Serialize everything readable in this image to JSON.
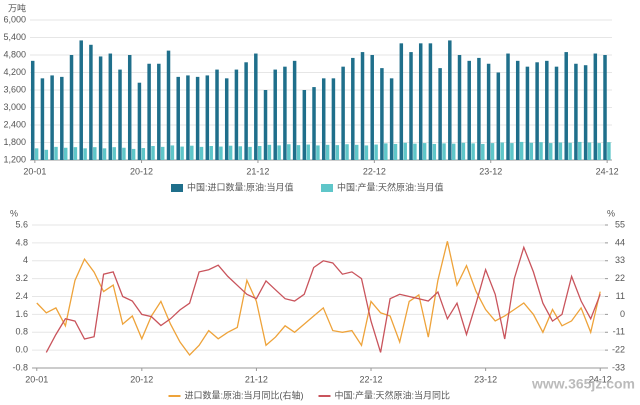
{
  "chart_data": [
    {
      "type": "bar",
      "unit": "万吨",
      "categories": [
        "20-01",
        null,
        null,
        null,
        null,
        null,
        null,
        null,
        null,
        null,
        null,
        "20-12",
        null,
        null,
        null,
        null,
        null,
        null,
        null,
        null,
        null,
        null,
        null,
        "21-12",
        null,
        null,
        null,
        null,
        null,
        null,
        null,
        null,
        null,
        null,
        null,
        "22-12",
        null,
        null,
        null,
        null,
        null,
        null,
        null,
        null,
        null,
        null,
        null,
        "23-12",
        null,
        null,
        null,
        null,
        null,
        null,
        null,
        null,
        null,
        null,
        null,
        "24-12"
      ],
      "series": [
        {
          "name": "中国:进口数量:原油:当月值",
          "color": "#1f6f8b",
          "values": [
            4600,
            4000,
            4100,
            4050,
            4800,
            5300,
            5150,
            4750,
            4850,
            4300,
            4800,
            3850,
            4500,
            4500,
            4950,
            4050,
            4100,
            4050,
            4100,
            4300,
            4000,
            4300,
            4550,
            4850,
            3600,
            4300,
            4400,
            4600,
            3600,
            3700,
            4000,
            4000,
            4400,
            4700,
            4900,
            4800,
            4350,
            4000,
            5200,
            4900,
            5200,
            5200,
            4350,
            5300,
            4800,
            4600,
            4700,
            4500,
            4200,
            4850,
            4600,
            4400,
            4550,
            4600,
            4400,
            4900,
            4500,
            4450,
            4850,
            4800
          ]
        },
        {
          "name": "中国:产量:天然原油:当月值",
          "color": "#5fc6c9",
          "values": [
            1600,
            1550,
            1650,
            1620,
            1640,
            1600,
            1640,
            1600,
            1640,
            1620,
            1580,
            1610,
            1680,
            1650,
            1700,
            1660,
            1690,
            1650,
            1680,
            1660,
            1690,
            1670,
            1650,
            1680,
            1720,
            1700,
            1740,
            1710,
            1730,
            1700,
            1720,
            1710,
            1740,
            1720,
            1700,
            1730,
            1770,
            1750,
            1790,
            1760,
            1780,
            1750,
            1770,
            1760,
            1790,
            1770,
            1750,
            1780,
            1800,
            1780,
            1820,
            1790,
            1810,
            1780,
            1800,
            1790,
            1820,
            1800,
            1780,
            1810
          ]
        }
      ],
      "ylim": [
        1200,
        6000
      ],
      "yticks": [
        {
          "value": 1200,
          "label": "1,200"
        },
        {
          "value": 1800,
          "label": "1,800"
        },
        {
          "value": 2400,
          "label": "2,400"
        },
        {
          "value": 3000,
          "label": "3,000"
        },
        {
          "value": 3600,
          "label": "3,600"
        },
        {
          "value": 4200,
          "label": "4,200"
        },
        {
          "value": 4800,
          "label": "4,800"
        },
        {
          "value": 5400,
          "label": "5,400"
        },
        {
          "value": 6000,
          "label": "6,000"
        }
      ],
      "grid": true
    },
    {
      "type": "line",
      "unit": "%",
      "y2_unit": "%",
      "watermark": "www.365jz.com",
      "categories": [
        "20-01",
        null,
        null,
        null,
        null,
        null,
        null,
        null,
        null,
        null,
        null,
        "20-12",
        null,
        null,
        null,
        null,
        null,
        null,
        null,
        null,
        null,
        null,
        null,
        "21-12",
        null,
        null,
        null,
        null,
        null,
        null,
        null,
        null,
        null,
        null,
        null,
        "22-12",
        null,
        null,
        null,
        null,
        null,
        null,
        null,
        null,
        null,
        null,
        null,
        "23-12",
        null,
        null,
        null,
        null,
        null,
        null,
        null,
        null,
        null,
        null,
        null,
        "24-12"
      ],
      "series": [
        {
          "name": "进口数量:原油:当月同比(右轴)",
          "color": "#eea33a",
          "axis": "y2",
          "values": [
            7,
            1,
            4,
            -7,
            21,
            34,
            26,
            14,
            18,
            -6,
            -1,
            -15,
            -1,
            8,
            -6,
            -17,
            -25,
            -19,
            -10,
            -15,
            -11,
            -8,
            21,
            8,
            -19,
            -14,
            -7,
            -11,
            -6,
            -1,
            4,
            -10,
            -11,
            -10,
            -19,
            8,
            1,
            -1,
            -17,
            8,
            12,
            -14,
            21,
            45,
            18,
            30,
            14,
            3,
            -4,
            -1,
            3,
            7,
            0,
            -11,
            3,
            -7,
            -4,
            4,
            -11,
            14
          ]
        },
        {
          "name": "中国:产量:天然原油:当月同比",
          "color": "#c9545c",
          "values": [
            null,
            -0.1,
            0.7,
            1.4,
            1.3,
            0.5,
            0.6,
            3.4,
            3.5,
            2.4,
            2.2,
            1.6,
            1.5,
            1.1,
            1.4,
            1.8,
            2.1,
            3.5,
            3.6,
            3.8,
            3.3,
            2.9,
            2.5,
            2.3,
            3.1,
            2.7,
            2.3,
            2.2,
            2.5,
            3.7,
            4.0,
            3.9,
            3.4,
            3.5,
            3.2,
            1.3,
            -0.1,
            2.3,
            2.5,
            2.4,
            2.3,
            2.2,
            2.6,
            1.4,
            2.1,
            0.7,
            2.1,
            3.6,
            2.5,
            0.5,
            3.2,
            4.6,
            3.5,
            2.1,
            1.3,
            1.6,
            3.3,
            2.2,
            1.4,
            2.5
          ]
        }
      ],
      "ylim": [
        -0.8,
        5.6
      ],
      "yticks": [
        -0.8,
        {
          "value": 0,
          "label": "0.0"
        },
        0.8,
        1.6,
        2.4,
        3.2,
        4,
        4.8,
        5.6
      ],
      "y2lim": [
        -33,
        55
      ],
      "y2ticks": [
        -33,
        -22,
        -11,
        0,
        11,
        22,
        33,
        44,
        55
      ],
      "grid": true
    }
  ]
}
